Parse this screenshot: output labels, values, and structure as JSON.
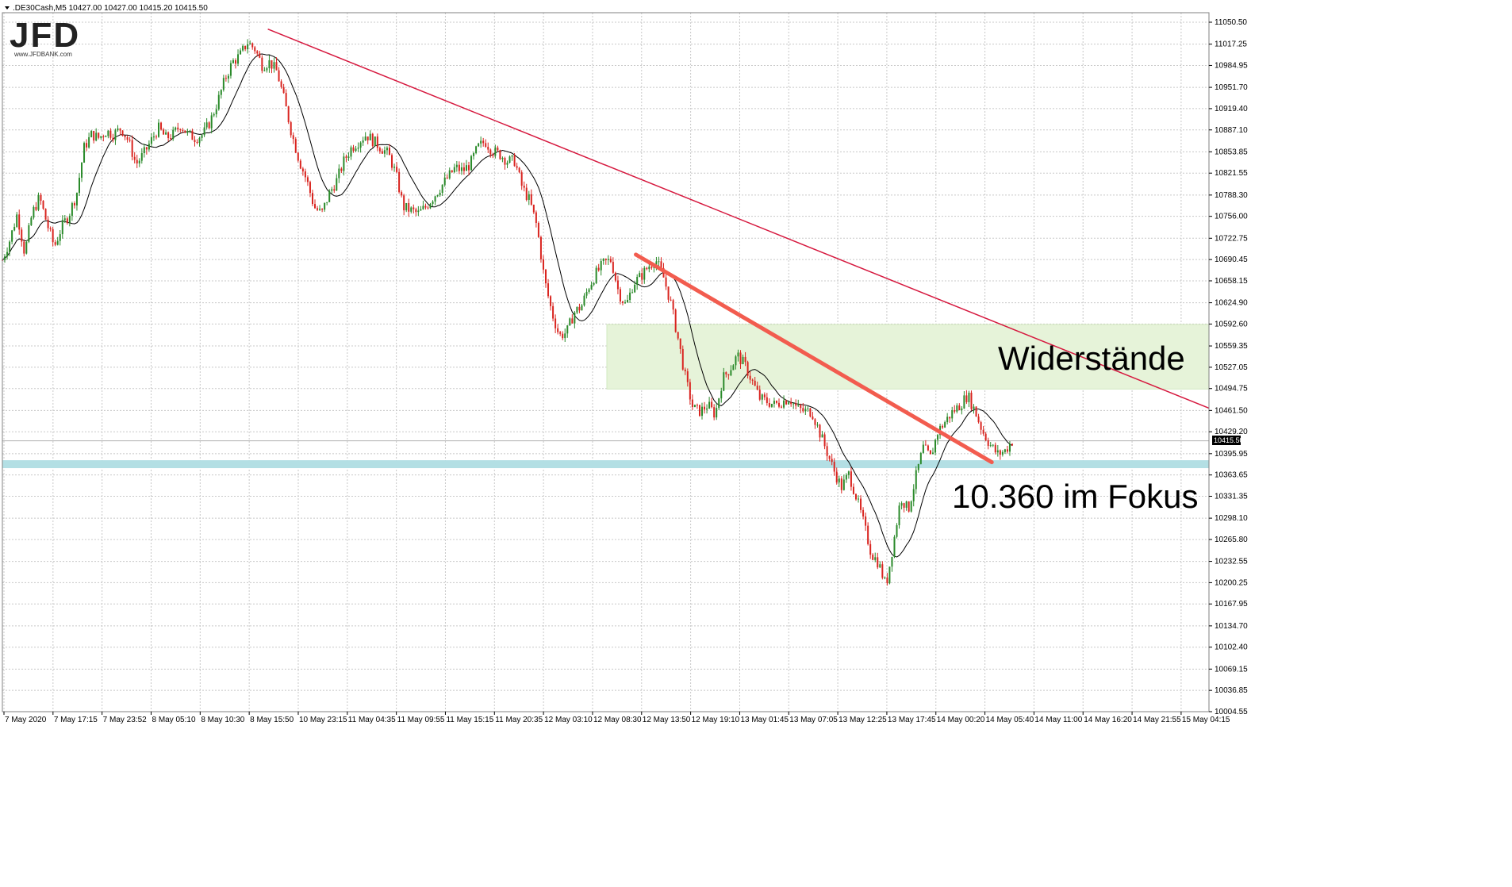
{
  "window": {
    "header_text": ".DE30Cash,M5  10427.00 10427.00 10415.20 10415.50",
    "dropdown_icon": "triangle-down-icon"
  },
  "logo": {
    "text": "JFD",
    "tagline": "www.JFDBANK.com"
  },
  "colors": {
    "bull_candle": "#2a8a2a",
    "bear_candle": "#d9241f",
    "moving_average": "#000000",
    "major_trendline": "#d6193f",
    "minor_trendline": "#f25c4f",
    "resistance_zone": "#e6f3d9",
    "support_band": "#b3dfe4",
    "grid": "#c8c8c8"
  },
  "chart_data": {
    "type": "candlestick",
    "symbol": ".DE30Cash",
    "timeframe": "M5",
    "ohlc_last": {
      "open": 10427.0,
      "high": 10427.0,
      "low": 10415.2,
      "close": 10415.5
    },
    "current_price": "10415.50",
    "y_ticks": [
      "11050.50",
      "11017.25",
      "10984.95",
      "10951.70",
      "10919.40",
      "10887.10",
      "10853.85",
      "10821.55",
      "10788.30",
      "10756.00",
      "10722.75",
      "10690.45",
      "10658.15",
      "10624.90",
      "10592.60",
      "10559.35",
      "10527.05",
      "10494.75",
      "10461.50",
      "10429.20",
      "10395.95",
      "10363.65",
      "10331.35",
      "10298.10",
      "10265.80",
      "10232.55",
      "10200.25",
      "10167.95",
      "10134.70",
      "10102.40",
      "10069.15",
      "10036.85",
      "10004.55"
    ],
    "ylim": [
      10004.55,
      11050.5
    ],
    "x_ticks": [
      "7 May 2020",
      "7 May 17:15",
      "7 May 23:52",
      "8 May 05:10",
      "8 May 10:30",
      "8 May 15:50",
      "10 May 23:15",
      "11 May 04:35",
      "11 May 09:55",
      "11 May 15:15",
      "11 May 20:35",
      "12 May 03:10",
      "12 May 08:30",
      "12 May 13:50",
      "12 May 19:10",
      "13 May 01:45",
      "13 May 07:05",
      "13 May 12:25",
      "13 May 17:45",
      "14 May 00:20",
      "14 May 05:40",
      "14 May 11:00",
      "14 May 16:20",
      "14 May 21:55",
      "15 May 04:15"
    ],
    "price_path": [
      [
        0,
        10690
      ],
      [
        2,
        10720
      ],
      [
        4,
        10760
      ],
      [
        6,
        10700
      ],
      [
        8,
        10760
      ],
      [
        10,
        10785
      ],
      [
        12,
        10745
      ],
      [
        14,
        10710
      ],
      [
        16,
        10740
      ],
      [
        18,
        10760
      ],
      [
        20,
        10790
      ],
      [
        22,
        10860
      ],
      [
        24,
        10880
      ],
      [
        26,
        10875
      ],
      [
        28,
        10885
      ],
      [
        30,
        10880
      ],
      [
        32,
        10890
      ],
      [
        34,
        10870
      ],
      [
        36,
        10835
      ],
      [
        38,
        10850
      ],
      [
        40,
        10870
      ],
      [
        42,
        10890
      ],
      [
        44,
        10875
      ],
      [
        46,
        10880
      ],
      [
        48,
        10895
      ],
      [
        50,
        10880
      ],
      [
        52,
        10875
      ],
      [
        54,
        10880
      ],
      [
        56,
        10900
      ],
      [
        58,
        10930
      ],
      [
        60,
        10965
      ],
      [
        62,
        10990
      ],
      [
        64,
        11000
      ],
      [
        66,
        11020
      ],
      [
        68,
        11010
      ],
      [
        70,
        10985
      ],
      [
        72,
        10990
      ],
      [
        74,
        10975
      ],
      [
        76,
        10930
      ],
      [
        78,
        10880
      ],
      [
        80,
        10840
      ],
      [
        82,
        10810
      ],
      [
        84,
        10770
      ],
      [
        86,
        10760
      ],
      [
        88,
        10790
      ],
      [
        90,
        10810
      ],
      [
        92,
        10840
      ],
      [
        94,
        10860
      ],
      [
        96,
        10870
      ],
      [
        98,
        10880
      ],
      [
        100,
        10870
      ],
      [
        102,
        10860
      ],
      [
        104,
        10850
      ],
      [
        106,
        10820
      ],
      [
        108,
        10770
      ],
      [
        110,
        10765
      ],
      [
        112,
        10760
      ],
      [
        114,
        10770
      ],
      [
        116,
        10785
      ],
      [
        118,
        10800
      ],
      [
        120,
        10815
      ],
      [
        122,
        10830
      ],
      [
        124,
        10825
      ],
      [
        126,
        10835
      ],
      [
        128,
        10860
      ],
      [
        130,
        10870
      ],
      [
        132,
        10855
      ],
      [
        134,
        10850
      ],
      [
        136,
        10840
      ],
      [
        138,
        10840
      ],
      [
        140,
        10800
      ],
      [
        142,
        10780
      ],
      [
        144,
        10740
      ],
      [
        146,
        10660
      ],
      [
        148,
        10610
      ],
      [
        150,
        10575
      ],
      [
        152,
        10580
      ],
      [
        154,
        10610
      ],
      [
        156,
        10620
      ],
      [
        158,
        10650
      ],
      [
        160,
        10670
      ],
      [
        162,
        10685
      ],
      [
        164,
        10690
      ],
      [
        166,
        10640
      ],
      [
        168,
        10620
      ],
      [
        170,
        10655
      ],
      [
        172,
        10665
      ],
      [
        174,
        10680
      ],
      [
        176,
        10690
      ],
      [
        178,
        10665
      ],
      [
        180,
        10625
      ],
      [
        182,
        10570
      ],
      [
        184,
        10510
      ],
      [
        186,
        10465
      ],
      [
        188,
        10460
      ],
      [
        190,
        10470
      ],
      [
        192,
        10455
      ],
      [
        194,
        10510
      ],
      [
        196,
        10525
      ],
      [
        198,
        10545
      ],
      [
        200,
        10530
      ],
      [
        202,
        10505
      ],
      [
        204,
        10480
      ],
      [
        206,
        10475
      ],
      [
        208,
        10470
      ],
      [
        210,
        10475
      ],
      [
        212,
        10480
      ],
      [
        214,
        10465
      ],
      [
        216,
        10460
      ],
      [
        218,
        10460
      ],
      [
        220,
        10430
      ],
      [
        222,
        10400
      ],
      [
        224,
        10370
      ],
      [
        226,
        10345
      ],
      [
        228,
        10365
      ],
      [
        230,
        10330
      ],
      [
        232,
        10290
      ],
      [
        234,
        10245
      ],
      [
        236,
        10230
      ],
      [
        238,
        10195
      ],
      [
        240,
        10260
      ],
      [
        242,
        10330
      ],
      [
        244,
        10310
      ],
      [
        246,
        10360
      ],
      [
        248,
        10405
      ],
      [
        250,
        10390
      ],
      [
        252,
        10430
      ],
      [
        254,
        10445
      ],
      [
        256,
        10460
      ],
      [
        258,
        10470
      ],
      [
        260,
        10485
      ],
      [
        262,
        10460
      ],
      [
        264,
        10430
      ],
      [
        266,
        10410
      ],
      [
        268,
        10395
      ],
      [
        270,
        10400
      ],
      [
        272,
        10415
      ]
    ],
    "annotations": {
      "resistance_label": "Widerstände",
      "focus_label": "10.360 im Fokus",
      "support_level": 10380,
      "resistance_zone": [
        10494,
        10592
      ],
      "major_trendline": {
        "from": [
          0.22,
          11040
        ],
        "to": [
          1.0,
          10465
        ]
      },
      "minor_trendline": {
        "from": [
          0.525,
          10698
        ],
        "to": [
          0.82,
          10383
        ]
      }
    }
  }
}
